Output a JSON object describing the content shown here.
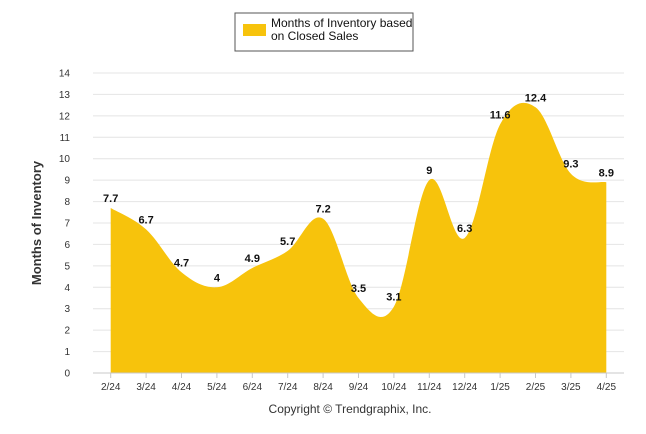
{
  "chart_data": {
    "type": "area",
    "categories": [
      "2/24",
      "3/24",
      "4/24",
      "5/24",
      "6/24",
      "7/24",
      "8/24",
      "9/24",
      "10/24",
      "11/24",
      "12/24",
      "1/25",
      "2/25",
      "3/25",
      "4/25"
    ],
    "series": [
      {
        "name": "Months of Inventory based on Closed Sales",
        "values": [
          7.7,
          6.7,
          4.7,
          4,
          4.9,
          5.7,
          7.2,
          3.5,
          3.1,
          9,
          6.3,
          11.6,
          12.4,
          9.3,
          8.9
        ]
      }
    ],
    "data_labels": [
      "7.7",
      "6.7",
      "4.7",
      "4",
      "4.9",
      "5.7",
      "7.2",
      "3.5",
      "3.1",
      "9",
      "6.3",
      "11.6",
      "12.4",
      "9.3",
      "8.9"
    ],
    "ylabel": "Months of Inventory",
    "ylim": [
      0,
      14
    ],
    "yticks": [
      0,
      1,
      2,
      3,
      4,
      5,
      6,
      7,
      8,
      9,
      10,
      11,
      12,
      13,
      14
    ],
    "grid": true,
    "legend_position": "top-center",
    "credit": "Copyright © Trendgraphix, Inc.",
    "colors": {
      "fill": "#F7C30C",
      "grid": "#e4e4e4"
    }
  }
}
